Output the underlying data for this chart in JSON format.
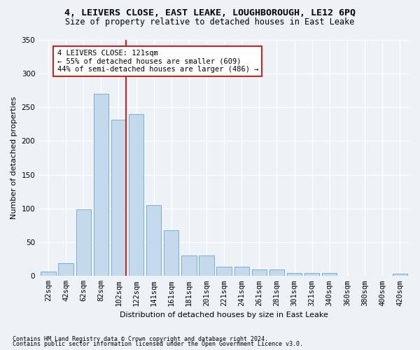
{
  "title1": "4, LEIVERS CLOSE, EAST LEAKE, LOUGHBOROUGH, LE12 6PQ",
  "title2": "Size of property relative to detached houses in East Leake",
  "xlabel": "Distribution of detached houses by size in East Leake",
  "ylabel": "Number of detached properties",
  "bar_color": "#c5d9ed",
  "bar_edge_color": "#7aaed6",
  "marker_color": "#cc2222",
  "categories": [
    "22sqm",
    "42sqm",
    "62sqm",
    "82sqm",
    "102sqm",
    "122sqm",
    "141sqm",
    "161sqm",
    "181sqm",
    "201sqm",
    "221sqm",
    "241sqm",
    "261sqm",
    "281sqm",
    "301sqm",
    "321sqm",
    "340sqm",
    "360sqm",
    "380sqm",
    "400sqm",
    "420sqm"
  ],
  "values": [
    7,
    19,
    99,
    270,
    231,
    240,
    105,
    68,
    30,
    30,
    14,
    14,
    10,
    10,
    4,
    4,
    4,
    0,
    0,
    0,
    3
  ],
  "ylim": [
    0,
    350
  ],
  "yticks": [
    0,
    50,
    100,
    150,
    200,
    250,
    300,
    350
  ],
  "annotation_text": "4 LEIVERS CLOSE: 121sqm\n← 55% of detached houses are smaller (609)\n44% of semi-detached houses are larger (486) →",
  "marker_bar_index": 4,
  "footer1": "Contains HM Land Registry data © Crown copyright and database right 2024.",
  "footer2": "Contains public sector information licensed under the Open Government Licence v3.0.",
  "background_color": "#edf2f7",
  "grid_color": "#ffffff",
  "title_fontsize": 9.5,
  "subtitle_fontsize": 8.5,
  "axis_label_fontsize": 8,
  "tick_fontsize": 7.5,
  "footer_fontsize": 6,
  "annotation_fontsize": 7.5
}
